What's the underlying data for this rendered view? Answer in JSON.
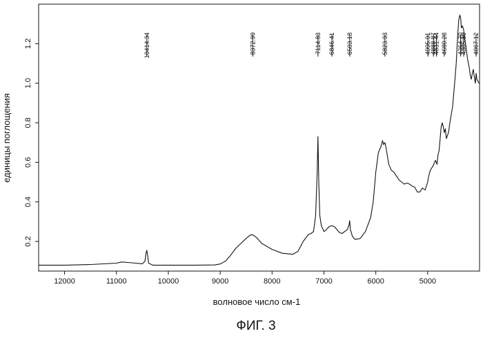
{
  "chart_data": {
    "type": "line",
    "title": "",
    "xlabel": "волновое число см-1",
    "ylabel": "единицы поглощения",
    "caption": "ФИГ. 3",
    "xlim": [
      12500,
      4000
    ],
    "ylim": [
      0.05,
      1.4
    ],
    "xticks": [
      12000,
      11000,
      10000,
      9000,
      8000,
      7000,
      6000,
      5000
    ],
    "xtick_labels": [
      "12000",
      "11000",
      "10000",
      "9000",
      "8000",
      "7000",
      "6000",
      "5000"
    ],
    "yticks": [
      0.2,
      0.4,
      0.6,
      0.8,
      1.0,
      1.2
    ],
    "ytick_labels": [
      "0.2",
      "0.4",
      "0.6",
      "0.8",
      "1.0",
      "1.2"
    ],
    "grid": false,
    "line_color": "#111111",
    "series": [
      {
        "name": "absorbance",
        "points": [
          [
            12500,
            0.08
          ],
          [
            12000,
            0.08
          ],
          [
            11500,
            0.083
          ],
          [
            11000,
            0.09
          ],
          [
            10900,
            0.096
          ],
          [
            10700,
            0.092
          ],
          [
            10500,
            0.087
          ],
          [
            10450,
            0.1
          ],
          [
            10430,
            0.14
          ],
          [
            10414,
            0.155
          ],
          [
            10400,
            0.13
          ],
          [
            10380,
            0.09
          ],
          [
            10300,
            0.08
          ],
          [
            10000,
            0.08
          ],
          [
            9500,
            0.08
          ],
          [
            9100,
            0.081
          ],
          [
            9000,
            0.086
          ],
          [
            8900,
            0.1
          ],
          [
            8800,
            0.13
          ],
          [
            8700,
            0.165
          ],
          [
            8600,
            0.19
          ],
          [
            8500,
            0.215
          ],
          [
            8420,
            0.232
          ],
          [
            8373,
            0.234
          ],
          [
            8300,
            0.22
          ],
          [
            8200,
            0.19
          ],
          [
            8000,
            0.16
          ],
          [
            7800,
            0.14
          ],
          [
            7600,
            0.135
          ],
          [
            7500,
            0.15
          ],
          [
            7400,
            0.2
          ],
          [
            7300,
            0.235
          ],
          [
            7250,
            0.24
          ],
          [
            7200,
            0.25
          ],
          [
            7160,
            0.33
          ],
          [
            7130,
            0.55
          ],
          [
            7115,
            0.73
          ],
          [
            7100,
            0.5
          ],
          [
            7080,
            0.33
          ],
          [
            7050,
            0.28
          ],
          [
            7000,
            0.25
          ],
          [
            6950,
            0.26
          ],
          [
            6900,
            0.275
          ],
          [
            6846,
            0.28
          ],
          [
            6800,
            0.275
          ],
          [
            6750,
            0.26
          ],
          [
            6700,
            0.245
          ],
          [
            6650,
            0.24
          ],
          [
            6600,
            0.25
          ],
          [
            6550,
            0.26
          ],
          [
            6520,
            0.28
          ],
          [
            6503,
            0.305
          ],
          [
            6490,
            0.26
          ],
          [
            6450,
            0.225
          ],
          [
            6400,
            0.21
          ],
          [
            6300,
            0.215
          ],
          [
            6200,
            0.25
          ],
          [
            6100,
            0.32
          ],
          [
            6050,
            0.4
          ],
          [
            6000,
            0.55
          ],
          [
            5950,
            0.65
          ],
          [
            5900,
            0.68
          ],
          [
            5870,
            0.71
          ],
          [
            5850,
            0.69
          ],
          [
            5824,
            0.7
          ],
          [
            5800,
            0.67
          ],
          [
            5750,
            0.59
          ],
          [
            5700,
            0.56
          ],
          [
            5650,
            0.55
          ],
          [
            5600,
            0.53
          ],
          [
            5550,
            0.51
          ],
          [
            5500,
            0.5
          ],
          [
            5450,
            0.49
          ],
          [
            5400,
            0.495
          ],
          [
            5350,
            0.49
          ],
          [
            5300,
            0.48
          ],
          [
            5250,
            0.475
          ],
          [
            5200,
            0.45
          ],
          [
            5150,
            0.45
          ],
          [
            5100,
            0.47
          ],
          [
            5050,
            0.46
          ],
          [
            5000,
            0.5
          ],
          [
            4980,
            0.53
          ],
          [
            4950,
            0.56
          ],
          [
            4900,
            0.58
          ],
          [
            4850,
            0.61
          ],
          [
            4820,
            0.59
          ],
          [
            4800,
            0.64
          ],
          [
            4780,
            0.66
          ],
          [
            4760,
            0.72
          ],
          [
            4740,
            0.78
          ],
          [
            4720,
            0.8
          ],
          [
            4700,
            0.78
          ],
          [
            4680,
            0.75
          ],
          [
            4660,
            0.77
          ],
          [
            4640,
            0.72
          ],
          [
            4600,
            0.75
          ],
          [
            4560,
            0.82
          ],
          [
            4520,
            0.88
          ],
          [
            4480,
            1.0
          ],
          [
            4450,
            1.1
          ],
          [
            4420,
            1.25
          ],
          [
            4400,
            1.32
          ],
          [
            4380,
            1.345
          ],
          [
            4365,
            1.33
          ],
          [
            4350,
            1.28
          ],
          [
            4330,
            1.29
          ],
          [
            4306,
            1.27
          ],
          [
            4290,
            1.23
          ],
          [
            4270,
            1.2
          ],
          [
            4250,
            1.16
          ],
          [
            4230,
            1.12
          ],
          [
            4200,
            1.08
          ],
          [
            4180,
            1.04
          ],
          [
            4160,
            1.02
          ],
          [
            4140,
            1.05
          ],
          [
            4120,
            1.07
          ],
          [
            4100,
            1.03
          ],
          [
            4080,
            1.0
          ],
          [
            4067,
            1.05
          ],
          [
            4050,
            1.02
          ],
          [
            4030,
            1.01
          ],
          [
            4010,
            1.0
          ]
        ]
      }
    ],
    "annotations": [
      {
        "label": "10414.34",
        "x": 10414
      },
      {
        "label": "8372.99",
        "x": 8373
      },
      {
        "label": "7114.83",
        "x": 7115
      },
      {
        "label": "6846.41",
        "x": 6846
      },
      {
        "label": "6503.18",
        "x": 6503
      },
      {
        "label": "5823.93",
        "x": 5824
      },
      {
        "label": "4995.91",
        "x": 4996
      },
      {
        "label": "4888.87",
        "x": 4889
      },
      {
        "label": "4831.44",
        "x": 4831
      },
      {
        "label": "4680.28",
        "x": 4680
      },
      {
        "label": "4364.70",
        "x": 4365
      },
      {
        "label": "4305.89",
        "x": 4306
      },
      {
        "label": "4067.12",
        "x": 4067
      }
    ]
  }
}
